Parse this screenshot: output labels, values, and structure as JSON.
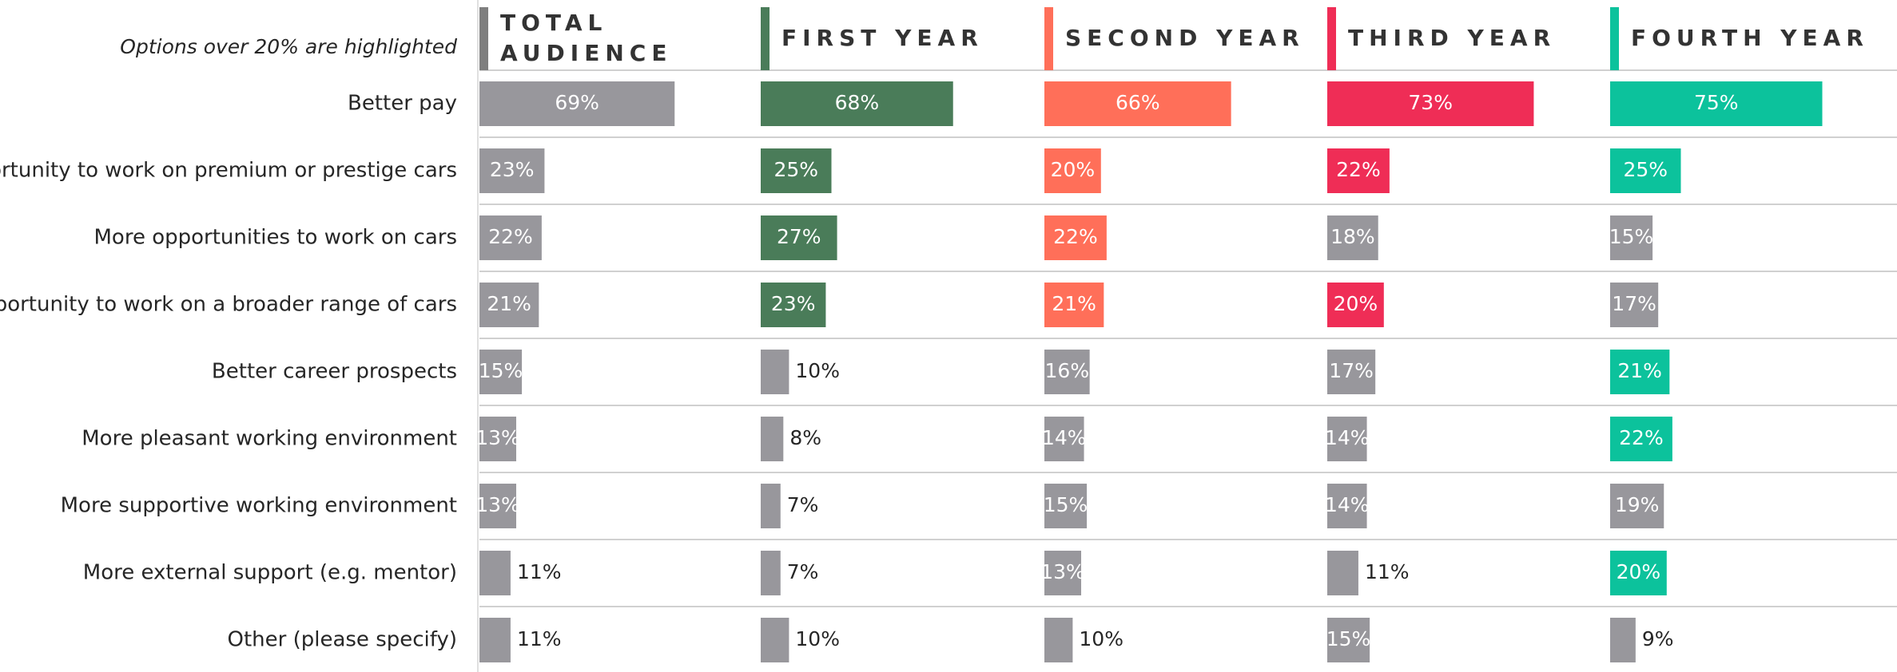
{
  "chart_data": {
    "type": "bar",
    "subtitle": "Options over 20% are highlighted",
    "categories": [
      "Better pay",
      "Opportunity to work on premium or prestige cars",
      "More opportunities to work on cars",
      "Opportunity to work on a broader range of cars",
      "Better career prospects",
      "More pleasant working environment",
      "More supportive working environment",
      "More external support (e.g. mentor)",
      "Other (please specify)"
    ],
    "xlim": [
      0,
      100
    ],
    "series": [
      {
        "name": "TOTAL AUDIENCE",
        "color": "#7f7f7f",
        "values": [
          69,
          23,
          22,
          21,
          15,
          13,
          13,
          11,
          11
        ],
        "value_labels": [
          "69%",
          "23%",
          "22%",
          "21%",
          "15%",
          "13%",
          "13%",
          "11%",
          "11%"
        ],
        "colors": [
          "#98979c",
          "#98979c",
          "#98979c",
          "#98979c",
          "#98979c",
          "#98979c",
          "#98979c",
          "#98979c",
          "#98979c"
        ]
      },
      {
        "name": "FIRST YEAR",
        "color": "#4a7c59",
        "values": [
          68,
          25,
          27,
          23,
          10,
          8,
          7,
          7,
          10
        ],
        "value_labels": [
          "68%",
          "25%",
          "27%",
          "23%",
          "10%",
          "8%",
          "7%",
          "7%",
          "10%"
        ],
        "colors": [
          "#4a7c59",
          "#4a7c59",
          "#4a7c59",
          "#4a7c59",
          "#98979c",
          "#98979c",
          "#98979c",
          "#98979c",
          "#98979c"
        ]
      },
      {
        "name": "SECOND YEAR",
        "color": "#ff6f59",
        "values": [
          66,
          20,
          22,
          21,
          16,
          14,
          15,
          13,
          10
        ],
        "value_labels": [
          "66%",
          "20%",
          "22%",
          "21%",
          "16%",
          "14%",
          "15%",
          "13%",
          "10%"
        ],
        "colors": [
          "#ff6f59",
          "#ff6f59",
          "#ff6f59",
          "#ff6f59",
          "#98979c",
          "#98979c",
          "#98979c",
          "#98979c",
          "#98979c"
        ]
      },
      {
        "name": "THIRD YEAR",
        "color": "#ef2d56",
        "values": [
          73,
          22,
          18,
          20,
          17,
          14,
          14,
          11,
          15
        ],
        "value_labels": [
          "73%",
          "22%",
          "18%",
          "20%",
          "17%",
          "14%",
          "14%",
          "11%",
          "15%"
        ],
        "colors": [
          "#ef2d56",
          "#ef2d56",
          "#98979c",
          "#ef2d56",
          "#98979c",
          "#98979c",
          "#98979c",
          "#98979c",
          "#98979c"
        ]
      },
      {
        "name": "FOURTH YEAR",
        "color": "#0cc29c",
        "values": [
          75,
          25,
          15,
          17,
          21,
          22,
          19,
          20,
          9
        ],
        "value_labels": [
          "75%",
          "25%",
          "15%",
          "17%",
          "21%",
          "22%",
          "19%",
          "20%",
          "9%"
        ],
        "colors": [
          "#0cc29c",
          "#0cc29c",
          "#98979c",
          "#98979c",
          "#0cc29c",
          "#0cc29c",
          "#98979c",
          "#0cc29c",
          "#98979c"
        ]
      }
    ]
  }
}
